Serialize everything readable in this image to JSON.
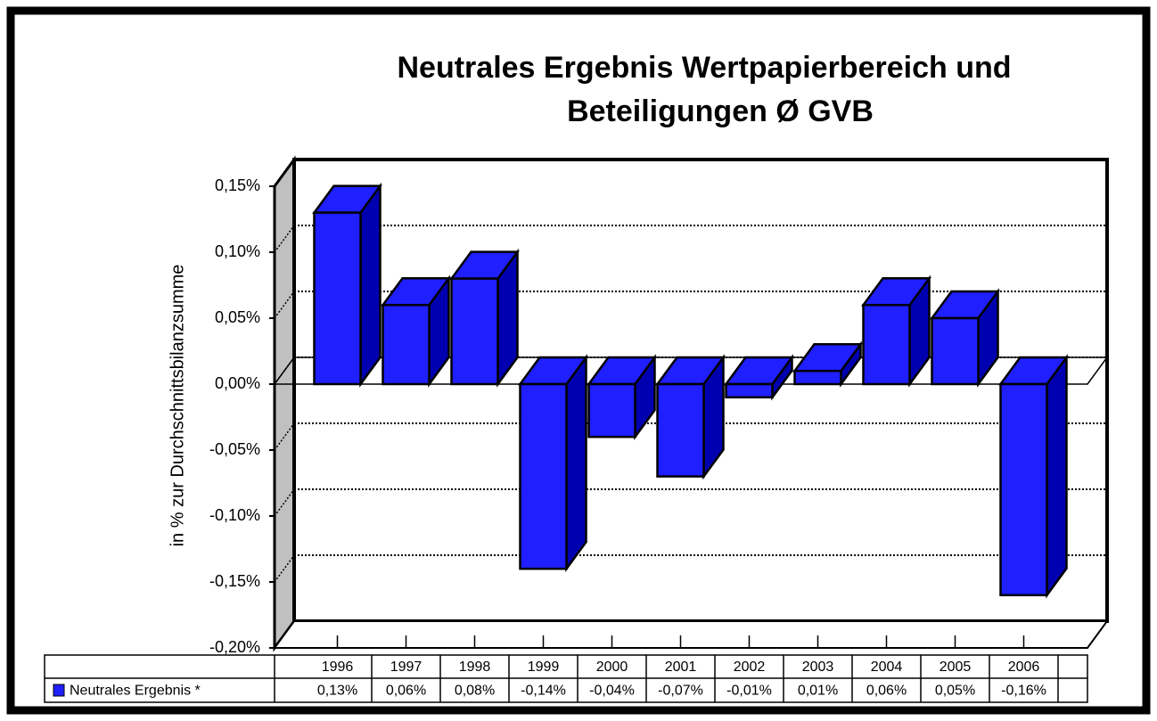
{
  "chart_data": {
    "type": "bar3d",
    "title": [
      "Neutrales Ergebnis Wertpapierbereich und",
      "Beteiligungen Ø GVB"
    ],
    "y_axis_label": "in % zur Durchschnittsbilanzsumme",
    "categories": [
      "1996",
      "1997",
      "1998",
      "1999",
      "2000",
      "2001",
      "2002",
      "2003",
      "2004",
      "2005",
      "2006"
    ],
    "series": [
      {
        "name": "Neutrales Ergebnis *",
        "color": "#1f1fff",
        "values": [
          0.13,
          0.06,
          0.08,
          -0.14,
          -0.04,
          -0.07,
          -0.01,
          0.01,
          0.06,
          0.05,
          -0.16
        ],
        "value_labels": [
          "0,13%",
          "0,06%",
          "0,08%",
          "-0,14%",
          "-0,04%",
          "-0,07%",
          "-0,01%",
          "0,01%",
          "0,06%",
          "0,05%",
          "-0,16%"
        ]
      }
    ],
    "ylim": [
      -0.2,
      0.15
    ],
    "yticks": [
      {
        "value": 0.15,
        "label": "0,15%"
      },
      {
        "value": 0.1,
        "label": "0,10%"
      },
      {
        "value": 0.05,
        "label": "0,05%"
      },
      {
        "value": 0,
        "label": "0,00%"
      },
      {
        "value": -0.05,
        "label": "-0,05%"
      },
      {
        "value": -0.1,
        "label": "-0,10%"
      },
      {
        "value": -0.15,
        "label": "-0,15%"
      },
      {
        "value": -0.2,
        "label": "-0,20%"
      }
    ],
    "grid": true,
    "legend": "table"
  }
}
